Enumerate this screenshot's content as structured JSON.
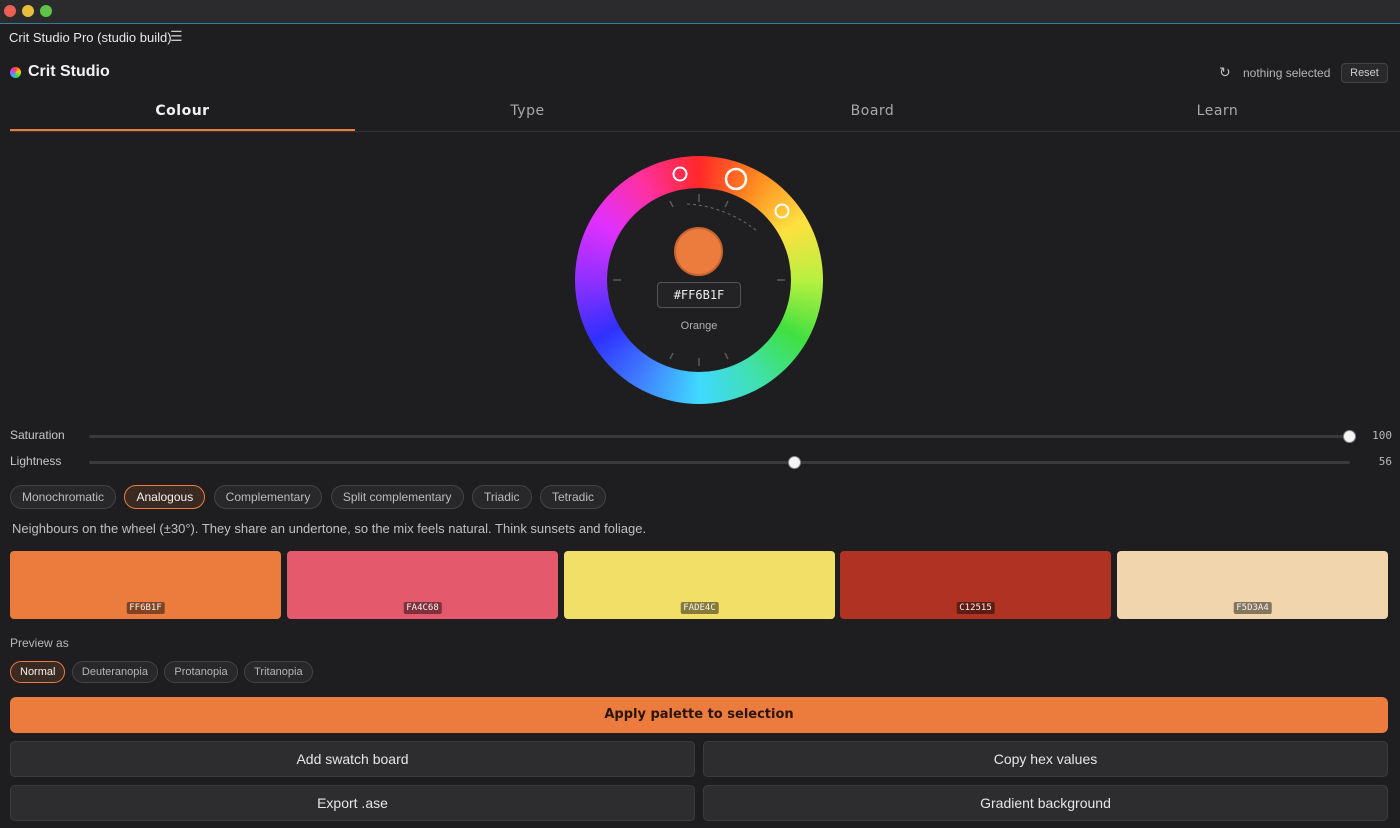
{
  "window": {
    "title": "Crit Studio Pro (studio build)",
    "menu_icon": "hamburger-icon"
  },
  "header": {
    "brand": "Crit Studio",
    "selection_status": "nothing selected",
    "reset_label": "Reset"
  },
  "tabs": [
    {
      "label": "Colour",
      "active": true
    },
    {
      "label": "Type",
      "active": false
    },
    {
      "label": "Board",
      "active": false
    },
    {
      "label": "Learn",
      "active": false
    }
  ],
  "wheel": {
    "hex": "#FF6B1F",
    "color_name": "Orange",
    "center_color": "#ec7b3e"
  },
  "sliders": {
    "saturation": {
      "label": "Saturation",
      "value": "100",
      "fraction": 1.0
    },
    "lightness": {
      "label": "Lightness",
      "value": "56",
      "fraction": 0.56
    }
  },
  "harmonies": {
    "options": [
      "Monochromatic",
      "Analogous",
      "Complementary",
      "Split complementary",
      "Triadic",
      "Tetradic"
    ],
    "selected": "Analogous",
    "description": "Neighbours on the wheel (±30°). They share an undertone, so the mix feels natural. Think sunsets and foliage."
  },
  "palette": [
    {
      "hex": "FF6B1F",
      "color": "#ec7b3e"
    },
    {
      "hex": "FA4C68",
      "color": "#e5596c"
    },
    {
      "hex": "FADE4C",
      "color": "#f2df68"
    },
    {
      "hex": "C12515",
      "color": "#b03223"
    },
    {
      "hex": "F5D3A4",
      "color": "#f1d5ac"
    }
  ],
  "preview": {
    "label": "Preview as",
    "options": [
      "Normal",
      "Deuteranopia",
      "Protanopia",
      "Tritanopia"
    ],
    "selected": "Normal"
  },
  "actions": {
    "apply": "Apply palette to selection",
    "add_swatch_board": "Add swatch board",
    "copy_hex": "Copy hex values",
    "export_ase": "Export .ase",
    "gradient_bg": "Gradient background"
  }
}
